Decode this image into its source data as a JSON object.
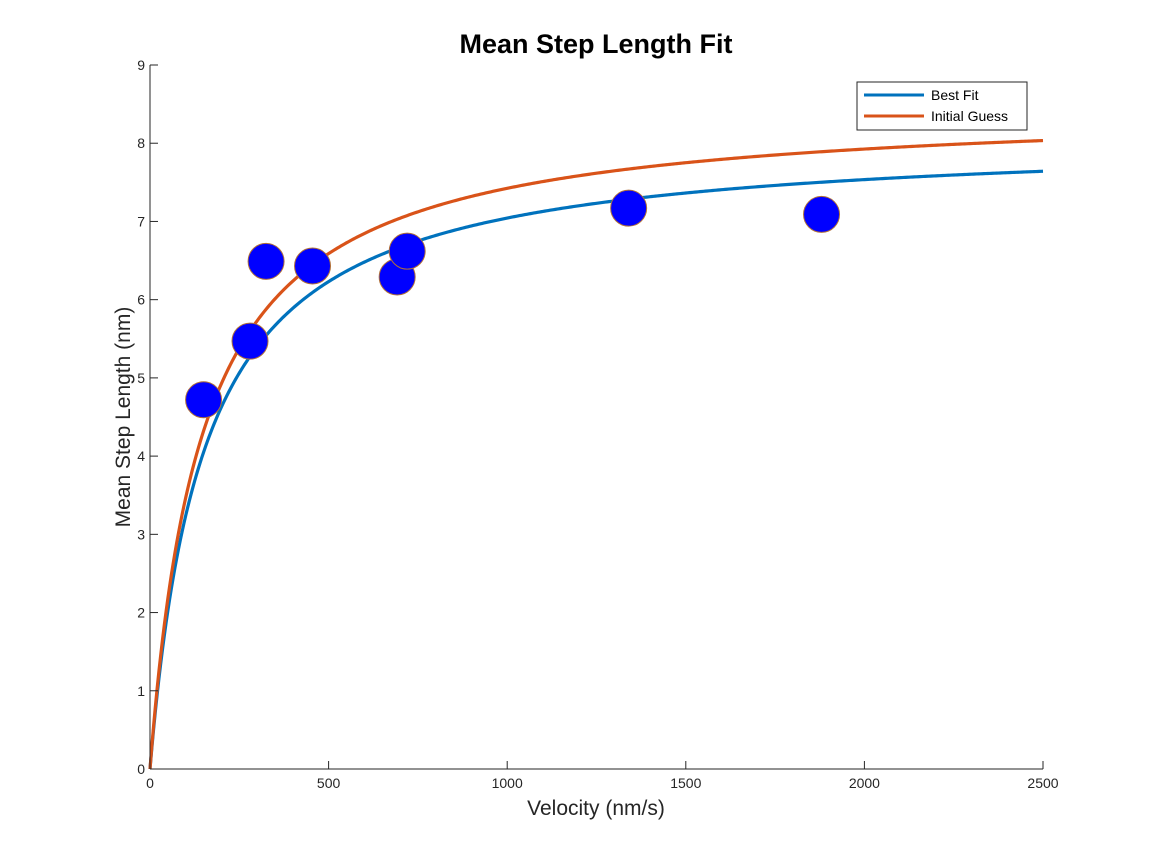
{
  "chart_data": {
    "type": "scatter",
    "title": "Mean Step Length Fit",
    "xlabel": "Velocity (nm/s)",
    "ylabel": "Mean Step Length (nm)",
    "xlim": [
      0,
      2500
    ],
    "ylim": [
      0,
      9
    ],
    "x_ticks": [
      0,
      500,
      1000,
      1500,
      2000,
      2500
    ],
    "y_ticks": [
      0,
      1,
      2,
      3,
      4,
      5,
      6,
      7,
      8,
      9
    ],
    "grid": false,
    "legend_position": "top-right",
    "points": {
      "color": "#0000ff",
      "x": [
        150,
        280,
        325,
        455,
        692,
        720,
        1340,
        1880
      ],
      "y": [
        4.72,
        5.47,
        6.49,
        6.43,
        6.29,
        6.62,
        7.17,
        7.09
      ]
    },
    "series": [
      {
        "name": "Best Fit",
        "color": "#0072bd",
        "vmax": 8.1,
        "k": 150,
        "x_end": 2500
      },
      {
        "name": "Initial Guess",
        "color": "#d95319",
        "vmax": 8.5,
        "k": 145,
        "x_end": 2500
      }
    ]
  }
}
